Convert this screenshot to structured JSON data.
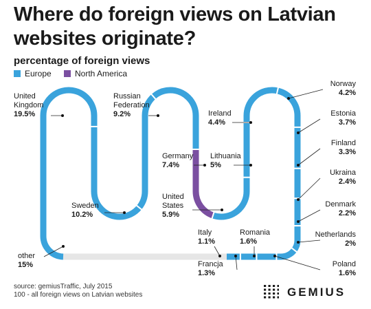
{
  "title": "Where do foreign views on Latvian websites originate?",
  "subtitle": "percentage of foreign views",
  "legend": [
    {
      "label": "Europe",
      "color": "#3aa3dc"
    },
    {
      "label": "North America",
      "color": "#7b4fa1"
    }
  ],
  "chart_data": {
    "type": "snake-flow",
    "unit": "%",
    "total": 100,
    "entries": [
      {
        "name": "United\nKingdom",
        "value": 19.5,
        "label": "19.5%",
        "group": "Europe"
      },
      {
        "name": "Sweden",
        "value": 10.2,
        "label": "10.2%",
        "group": "Europe"
      },
      {
        "name": "Russian\nFederation",
        "value": 9.2,
        "label": "9.2%",
        "group": "Europe"
      },
      {
        "name": "Germany",
        "value": 7.4,
        "label": "7.4%",
        "group": "Europe"
      },
      {
        "name": "United\nStates",
        "value": 5.9,
        "label": "5.9%",
        "group": "North America"
      },
      {
        "name": "Lithuania",
        "value": 5,
        "label": "5%",
        "group": "Europe"
      },
      {
        "name": "Ireland",
        "value": 4.4,
        "label": "4.4%",
        "group": "Europe"
      },
      {
        "name": "Norway",
        "value": 4.2,
        "label": "4.2%",
        "group": "Europe"
      },
      {
        "name": "Estonia",
        "value": 3.7,
        "label": "3.7%",
        "group": "Europe"
      },
      {
        "name": "Finland",
        "value": 3.3,
        "label": "3.3%",
        "group": "Europe"
      },
      {
        "name": "Ukraina",
        "value": 2.4,
        "label": "2.4%",
        "group": "Europe"
      },
      {
        "name": "Denmark",
        "value": 2.2,
        "label": "2.2%",
        "group": "Europe"
      },
      {
        "name": "Netherlands",
        "value": 2,
        "label": "2%",
        "group": "Europe"
      },
      {
        "name": "Poland",
        "value": 1.6,
        "label": "1.6%",
        "group": "Europe"
      },
      {
        "name": "Romania",
        "value": 1.6,
        "label": "1.6%",
        "group": "Europe"
      },
      {
        "name": "Francja",
        "value": 1.3,
        "label": "1.3%",
        "group": "Europe"
      },
      {
        "name": "Italy",
        "value": 1.1,
        "label": "1.1%",
        "group": "Europe"
      },
      {
        "name": "other",
        "value": 15,
        "label": "15%",
        "group": "other"
      }
    ],
    "colors": {
      "Europe": "#3aa3dc",
      "North America": "#7b4fa1",
      "other": "#e6e6e6"
    }
  },
  "source": "source: gemiusTraffic, July 2015",
  "note": "100 - all foreign views on Latvian websites",
  "brand": "GEMIUS"
}
